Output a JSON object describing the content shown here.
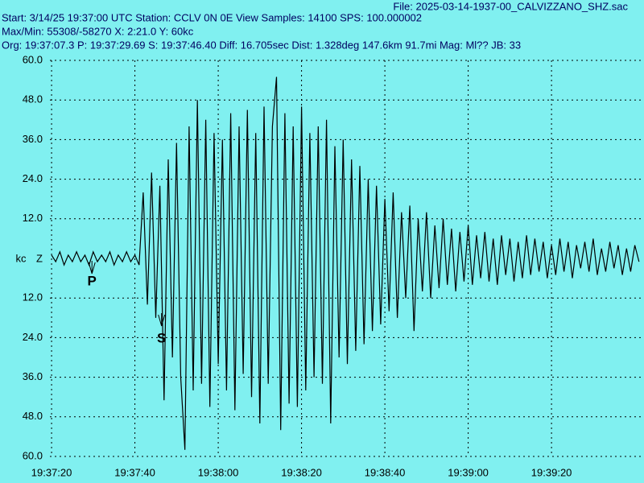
{
  "header": {
    "file": "File: 2025-03-14-1937-00_CALVIZZANO_SHZ.sac",
    "line1": "Start: 3/14/25 19:37:00 UTC Station: CCLV 0N 0E View Samples: 14100  SPS: 100.000002",
    "line2": "Max/Min: 55308/-58270 X: 2:21.0 Y: 60kc",
    "line3": "Org: 19:37:07.3 P: 19:37:29.69 S: 19:37:46.40 Diff: 16.705sec Dist: 1.328deg 147.6km 91.7mi  Mag: Ml?? JB: 33"
  },
  "chart_data": {
    "type": "line",
    "y_label": "kc",
    "channel": "Z",
    "grid": true,
    "xlim": [
      19.6,
      162.2
    ],
    "ylim": [
      -60,
      60
    ],
    "xticks": [
      {
        "value": 20,
        "label": "19:37:20"
      },
      {
        "value": 40,
        "label": "19:37:40"
      },
      {
        "value": 60,
        "label": "19:38:00"
      },
      {
        "value": 80,
        "label": "19:38:20"
      },
      {
        "value": 100,
        "label": "19:38:40"
      },
      {
        "value": 120,
        "label": "19:39:00"
      },
      {
        "value": 140,
        "label": "19:39:20"
      }
    ],
    "yticks": [
      {
        "value": 60,
        "label": "60.0"
      },
      {
        "value": 48,
        "label": "48.0"
      },
      {
        "value": 36,
        "label": "36.0"
      },
      {
        "value": 24,
        "label": "24.0"
      },
      {
        "value": 12,
        "label": "12.0"
      },
      {
        "value": -12,
        "label": "12.0"
      },
      {
        "value": -24,
        "label": "24.0"
      },
      {
        "value": -36,
        "label": "36.0"
      },
      {
        "value": -48,
        "label": "48.0"
      },
      {
        "value": -60,
        "label": "60.0"
      }
    ],
    "annotations": [
      {
        "label": "P",
        "x": 29.69
      },
      {
        "label": "S",
        "x": 46.4
      }
    ],
    "x": [
      20,
      21,
      22,
      23,
      24,
      25,
      26,
      27,
      28,
      29,
      30,
      31,
      32,
      33,
      34,
      35,
      36,
      37,
      38,
      39,
      40,
      41,
      42,
      43,
      44,
      45,
      46,
      47,
      48,
      49,
      50,
      51,
      52,
      53,
      54,
      55,
      56,
      57,
      58,
      59,
      60,
      61,
      62,
      63,
      64,
      65,
      66,
      67,
      68,
      69,
      70,
      71,
      72,
      73,
      74,
      75,
      76,
      77,
      78,
      79,
      80,
      81,
      82,
      83,
      84,
      85,
      86,
      87,
      88,
      89,
      90,
      91,
      92,
      93,
      94,
      95,
      96,
      97,
      98,
      99,
      100,
      101,
      102,
      103,
      104,
      105,
      106,
      107,
      108,
      109,
      110,
      111,
      112,
      113,
      114,
      115,
      116,
      117,
      118,
      119,
      120,
      121,
      122,
      123,
      124,
      125,
      126,
      127,
      128,
      129,
      130,
      131,
      132,
      133,
      134,
      135,
      136,
      137,
      138,
      139,
      140,
      141,
      142,
      143,
      144,
      145,
      146,
      147,
      148,
      149,
      150,
      151,
      152,
      153,
      154,
      155,
      156,
      157,
      158,
      159,
      160,
      161
    ],
    "series": [
      {
        "name": "Z",
        "color": "#000000",
        "values": [
          1,
          -1,
          2,
          -2,
          1,
          -1,
          2,
          -1,
          1,
          -2,
          2,
          -1,
          1,
          -1,
          2,
          -2,
          1,
          -1,
          2,
          -1,
          1,
          -2,
          20,
          -14,
          26,
          -18,
          22,
          -43,
          30,
          -30,
          35,
          -36,
          -58,
          40,
          -40,
          48,
          -38,
          42,
          -45,
          38,
          -32,
          36,
          -40,
          44,
          -46,
          40,
          -35,
          45,
          -42,
          38,
          -50,
          46,
          -38,
          40,
          55,
          -52,
          44,
          -44,
          40,
          -45,
          46,
          -40,
          38,
          -36,
          40,
          -38,
          42,
          -50,
          34,
          -30,
          36,
          -32,
          30,
          -28,
          28,
          -26,
          24,
          -22,
          22,
          -20,
          18,
          -16,
          20,
          -18,
          14,
          -12,
          16,
          -22,
          12,
          -10,
          14,
          -12,
          10,
          -9,
          12,
          -8,
          9,
          -10,
          8,
          -7,
          10,
          -8,
          7,
          -6,
          8,
          -7,
          6,
          -8,
          7,
          -5,
          6,
          -7,
          5,
          -6,
          7,
          -5,
          6,
          -4,
          5,
          -6,
          4,
          -5,
          6,
          -4,
          5,
          -6,
          4,
          -3,
          5,
          -4,
          6,
          -5,
          3,
          -4,
          5,
          -3,
          4,
          -5,
          3,
          -4,
          4,
          -1
        ]
      }
    ]
  }
}
